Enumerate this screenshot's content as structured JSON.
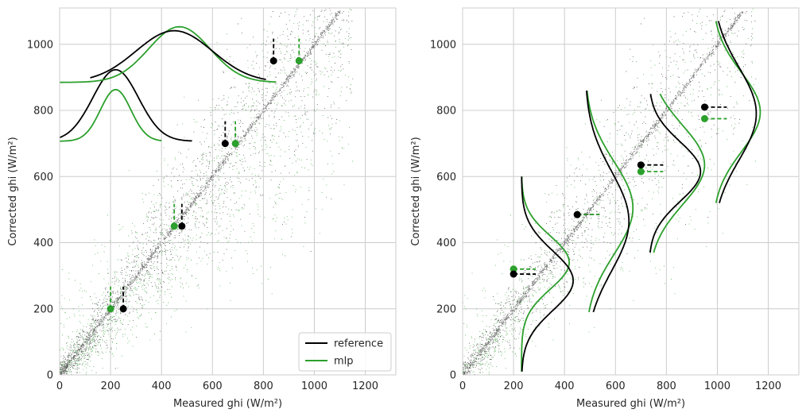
{
  "colors": {
    "reference": "#000000",
    "mlp": "#2ca02c",
    "grid": "#cccccc",
    "frame": "#cccccc",
    "diagonal": "#555555"
  },
  "chart_data": [
    {
      "type": "scatter",
      "panel": "left",
      "xlabel": "Measured ghi (W/m²)",
      "ylabel": "Corrected ghi (W/m²)",
      "xlim": [
        0,
        1320
      ],
      "ylim": [
        0,
        1110
      ],
      "xticks": [
        0,
        200,
        400,
        600,
        800,
        1000,
        1200
      ],
      "yticks": [
        0,
        200,
        400,
        600,
        800,
        1000
      ],
      "grid": true,
      "legend": {
        "position": "bottom-right",
        "entries": [
          "reference",
          "mlp"
        ]
      },
      "bins": [
        {
          "y_level": 200,
          "reference_mean_x": 250,
          "mlp_mean_x": 200
        },
        {
          "y_level": 450,
          "reference_mean_x": 480,
          "mlp_mean_x": 450
        },
        {
          "y_level": 700,
          "reference_mean_x": 650,
          "mlp_mean_x": 690
        },
        {
          "y_level": 950,
          "reference_mean_x": 840,
          "mlp_mean_x": 940
        }
      ],
      "series": [
        {
          "name": "reference",
          "mean_points": [
            [
              250,
              200
            ],
            [
              480,
              450
            ],
            [
              650,
              700
            ],
            [
              840,
              950
            ]
          ]
        },
        {
          "name": "mlp",
          "mean_points": [
            [
              200,
              200
            ],
            [
              450,
              450
            ],
            [
              690,
              700
            ],
            [
              940,
              950
            ]
          ]
        }
      ]
    },
    {
      "type": "scatter",
      "panel": "right",
      "xlabel": "Measured ghi (W/m²)",
      "ylabel": "Corrected ghi (W/m²)",
      "xlim": [
        0,
        1320
      ],
      "ylim": [
        0,
        1110
      ],
      "xticks": [
        0,
        200,
        400,
        600,
        800,
        1000,
        1200
      ],
      "yticks": [
        0,
        200,
        400,
        600,
        800,
        1000
      ],
      "grid": true,
      "bins": [
        {
          "x_level": 200,
          "reference_mean_y": 305,
          "mlp_mean_y": 320
        },
        {
          "x_level": 450,
          "reference_mean_y": 485,
          "mlp_mean_y": 485
        },
        {
          "x_level": 700,
          "reference_mean_y": 635,
          "mlp_mean_y": 615
        },
        {
          "x_level": 950,
          "reference_mean_y": 810,
          "mlp_mean_y": 775
        }
      ],
      "series": [
        {
          "name": "reference",
          "mean_points": [
            [
              200,
              305
            ],
            [
              450,
              485
            ],
            [
              700,
              635
            ],
            [
              950,
              810
            ]
          ]
        },
        {
          "name": "mlp",
          "mean_points": [
            [
              200,
              320
            ],
            [
              450,
              485
            ],
            [
              700,
              615
            ],
            [
              950,
              775
            ]
          ]
        }
      ]
    }
  ]
}
